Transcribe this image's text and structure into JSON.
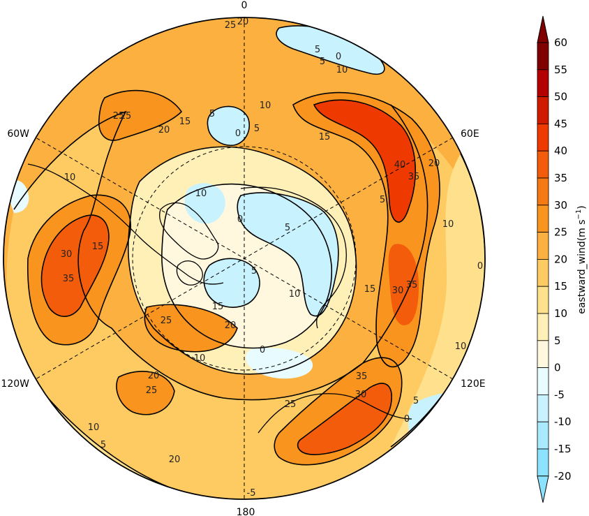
{
  "map": {
    "projection": "north-polar-stereographic",
    "longitude_labels": [
      "0",
      "60E",
      "120E",
      "180",
      "120W",
      "60W"
    ],
    "graticule": "dashed",
    "coastlines": true
  },
  "colorbar": {
    "title": "eastward_wind(m s",
    "title_unit_exponent": "−1",
    "title_close": ")",
    "levels": [
      "60",
      "55",
      "50",
      "45",
      "40",
      "35",
      "30",
      "25",
      "20",
      "15",
      "10",
      "5",
      "0",
      "-5",
      "-10",
      "-15",
      "-20"
    ],
    "colors": [
      "#800000",
      "#b30000",
      "#d01a00",
      "#ee3a00",
      "#f25c0a",
      "#f57a14",
      "#f9951f",
      "#fbb040",
      "#fdcb62",
      "#fee08d",
      "#fff0b8",
      "#fff8de",
      "#e8fbff",
      "#c9f2ff",
      "#aaeaff",
      "#8de2ff"
    ],
    "extend": "both"
  },
  "contour_labels": [
    "25",
    "20",
    "5",
    "0",
    "5",
    "10",
    "25",
    "20",
    "15",
    "15",
    "40",
    "35",
    "20",
    "5",
    "10",
    "0",
    "30",
    "35",
    "15",
    "10",
    "35",
    "30",
    "25",
    "10",
    "5",
    "0",
    "25",
    "20",
    "10",
    "20",
    "25",
    "10",
    "5",
    "20",
    "25",
    "30",
    "35",
    "0",
    "5",
    "10",
    "15",
    "5",
    "0",
    "10",
    "0",
    "5",
    "10",
    "15",
    "5",
    "-5"
  ]
}
